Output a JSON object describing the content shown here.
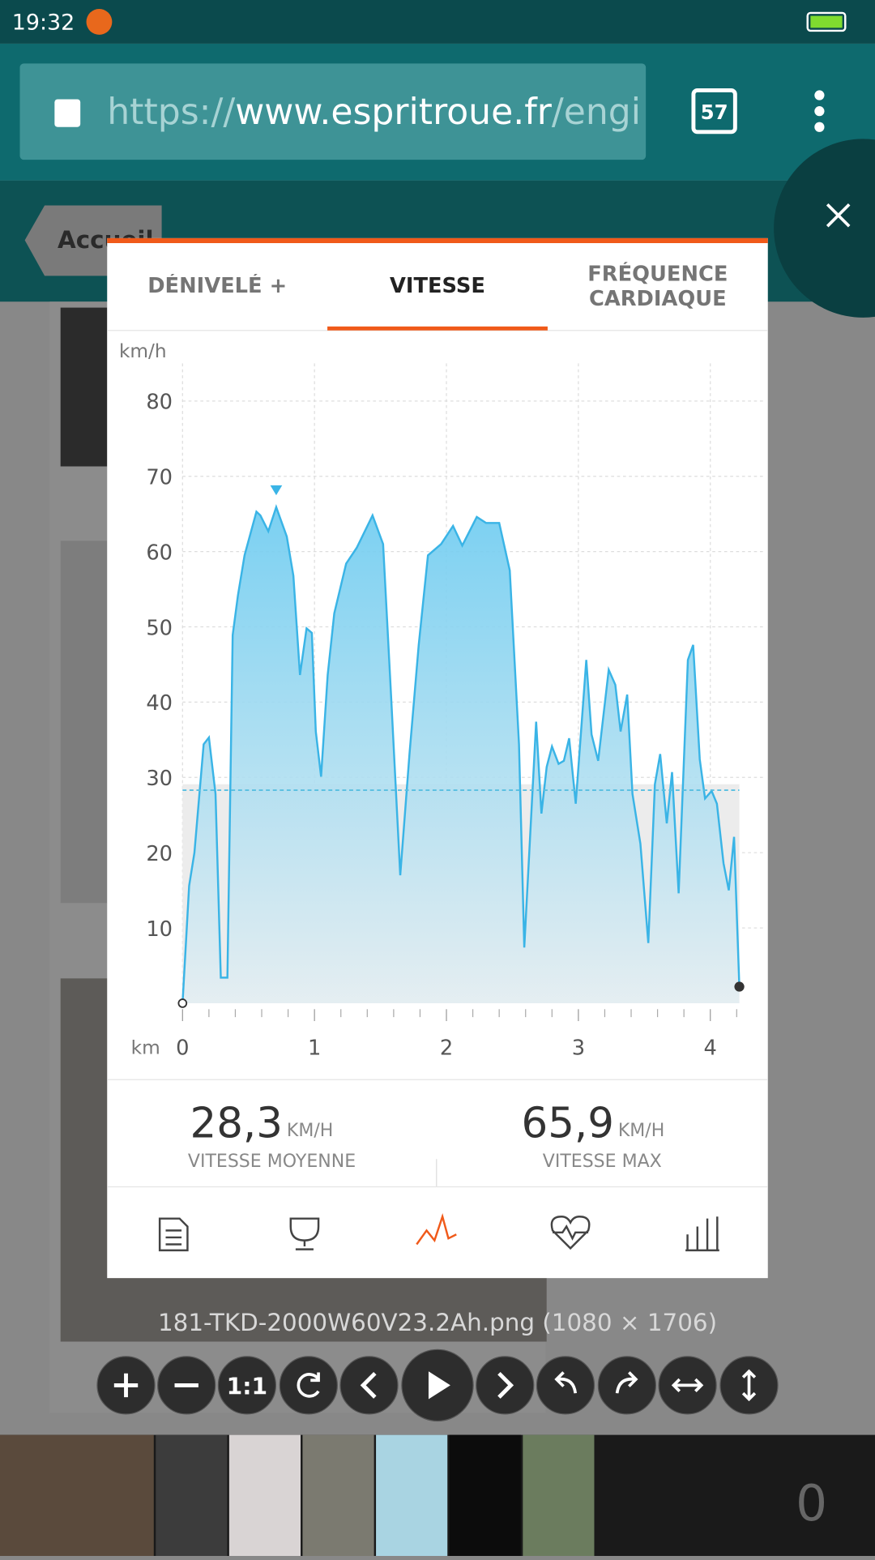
{
  "status_bar": {
    "time": "19:32"
  },
  "browser": {
    "url_scheme": "https://",
    "url_host": "www.espritroue.fr",
    "url_path": "/engi",
    "tab_count": "57"
  },
  "site": {
    "back": "Accueil"
  },
  "tabs": [
    "DÉNIVELÉ +",
    "VITESSE",
    "FRÉQUENCE CARDIAQUE"
  ],
  "chart_data": {
    "type": "area",
    "y_label": "km/h",
    "x_label": "km",
    "xlim": [
      0,
      4.4
    ],
    "ylim": [
      0,
      85
    ],
    "xticks": [
      0,
      1,
      2,
      3,
      4
    ],
    "xminorticks": [
      0.2,
      0.4,
      0.6,
      0.8,
      1.2,
      1.4,
      1.6,
      1.8,
      2.2,
      2.4,
      2.6,
      2.8,
      3.2,
      3.4,
      3.6,
      3.8,
      4.2
    ],
    "yticks": [
      10,
      20,
      30,
      40,
      50,
      60,
      70,
      80
    ],
    "grid": true,
    "mean": 28.3,
    "series": [
      {
        "name": "VITESSE",
        "color": "#3ab4e6",
        "x": [
          0,
          0.05,
          0.09,
          0.16,
          0.2,
          0.25,
          0.29,
          0.34,
          0.38,
          0.42,
          0.47,
          0.56,
          0.59,
          0.65,
          0.71,
          0.79,
          0.84,
          0.89,
          0.94,
          0.98,
          1.01,
          1.05,
          1.1,
          1.15,
          1.24,
          1.32,
          1.44,
          1.52,
          1.58,
          1.65,
          1.72,
          1.79,
          1.86,
          1.96,
          2.05,
          2.12,
          2.23,
          2.3,
          2.4,
          2.48,
          2.55,
          2.59,
          2.68,
          2.72,
          2.76,
          2.8,
          2.85,
          2.89,
          2.93,
          2.98,
          3.06,
          3.1,
          3.15,
          3.23,
          3.28,
          3.32,
          3.37,
          3.41,
          3.47,
          3.53,
          3.58,
          3.62,
          3.67,
          3.71,
          3.76,
          3.83,
          3.87,
          3.92,
          3.96,
          4.01,
          4.05,
          4.1,
          4.14,
          4.18,
          4.22
        ],
        "values": [
          0,
          15.6,
          20,
          34.4,
          35.3,
          27.8,
          3.4,
          3.4,
          48.9,
          54.2,
          59.5,
          65.3,
          64.8,
          62.7,
          65.9,
          62,
          56.8,
          43.6,
          49.8,
          49.2,
          36.1,
          30.1,
          43.6,
          51.8,
          58.4,
          60.5,
          64.8,
          61,
          41,
          17,
          33.1,
          47.6,
          59.5,
          61,
          63.4,
          60.8,
          64.6,
          63.8,
          63.8,
          57.5,
          34.4,
          7.4,
          37.4,
          25.2,
          31.4,
          34.1,
          31.8,
          32.2,
          35.2,
          26.5,
          45.6,
          35.7,
          32.2,
          44.3,
          42.3,
          36.1,
          41,
          27.8,
          21.2,
          8,
          29.1,
          33.1,
          23.9,
          30.7,
          14.6,
          45.6,
          47.6,
          32.4,
          27.2,
          28.2,
          26.5,
          18.6,
          15,
          22.1,
          2.2
        ]
      }
    ]
  },
  "stats": [
    {
      "value": "28,3",
      "unit": "KM/H",
      "label": "VITESSE MOYENNE"
    },
    {
      "value": "65,9",
      "unit": "KM/H",
      "label": "VITESSE MAX"
    }
  ],
  "caption": "181-TKD-2000W60V23.2Ah.png (1080 × 1706)",
  "toolbar": {
    "zoom_reset": "1:1"
  },
  "thumbnails": {
    "counter": "0"
  }
}
